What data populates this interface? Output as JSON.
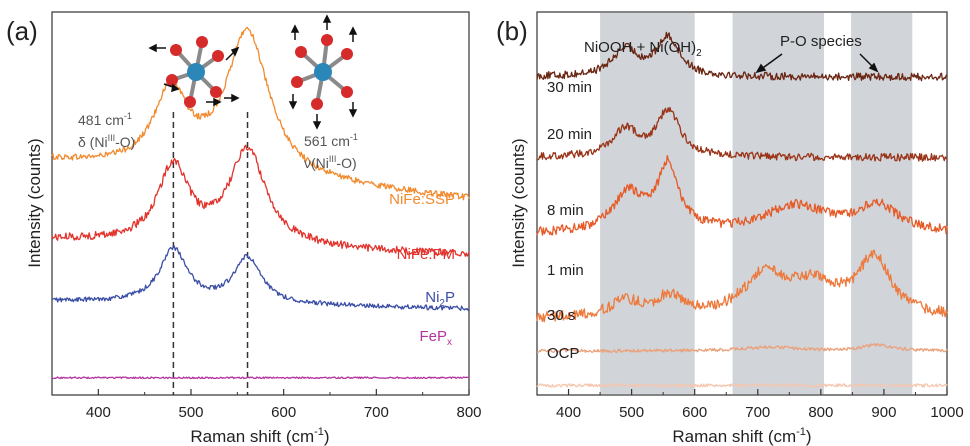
{
  "chart_data": [
    {
      "panel": "(a)",
      "type": "line",
      "xlabel": "Raman shift (cm",
      "xlabel_sup": "-1",
      "xlabel_end": ")",
      "ylabel": "Intensity (counts)",
      "xlim": [
        350,
        800
      ],
      "xticks": [
        "400",
        "500",
        "600",
        "700",
        "800"
      ],
      "reference_lines": [
        481,
        561
      ],
      "annotations": {
        "peak1_wn": "481 cm",
        "peak1_sup": "-1",
        "peak1_mode_a": "δ (Ni",
        "peak1_mode_sup": "III",
        "peak1_mode_b": "-O)",
        "peak2_wn": "561 cm",
        "peak2_sup": "-1",
        "peak2_mode_a": "ν(Ni",
        "peak2_mode_sup": "III",
        "peak2_mode_b": "-O)"
      },
      "series": [
        {
          "name": "NiFe:SSP",
          "color": "#f28a2e",
          "baseline": 0.61,
          "bg_slope": -0.1,
          "peaks": [
            [
              478,
              0.2,
              22
            ],
            [
              561,
              0.38,
              28
            ]
          ],
          "noise": 0.008
        },
        {
          "name": "NiFe:PM",
          "color": "#e2332d",
          "baseline": 0.405,
          "bg_slope": -0.04,
          "peaks": [
            [
              481,
              0.2,
              20
            ],
            [
              561,
              0.25,
              24
            ]
          ],
          "noise": 0.01
        },
        {
          "name": "Ni",
          "label_sub": "2",
          "label_end": "P",
          "color": "#3b4ea5",
          "baseline": 0.245,
          "bg_slope": -0.02,
          "peaks": [
            [
              481,
              0.14,
              18
            ],
            [
              561,
              0.12,
              18
            ]
          ],
          "noise": 0.006
        },
        {
          "name": "FeP",
          "label_sub": "x",
          "color": "#b5339e",
          "baseline": 0.045,
          "bg_slope": 0.0,
          "peaks": [],
          "noise": 0.002
        }
      ]
    },
    {
      "panel": "(b)",
      "type": "line",
      "xlabel": "Raman shift (cm",
      "xlabel_sup": "-1",
      "xlabel_end": ")",
      "ylabel": "Intensity (counts)",
      "xlim": [
        350,
        1000
      ],
      "xticks": [
        "400",
        "500",
        "600",
        "700",
        "800",
        "900",
        "1000"
      ],
      "shaded_regions": [
        [
          450,
          600
        ],
        [
          660,
          805
        ],
        [
          848,
          945
        ]
      ],
      "annotations": {
        "region1_a": "NiOOH + Ni(OH)",
        "region1_sub": "2",
        "region1_b": "",
        "region2": "P-O species"
      },
      "series": [
        {
          "name": "30 min",
          "color": "#6b2614",
          "baseline": 0.83,
          "bg_slope": 0.0,
          "peaks": [
            [
              490,
              0.07,
              25
            ],
            [
              558,
              0.1,
              22
            ]
          ],
          "noise": 0.01
        },
        {
          "name": "20 min",
          "color": "#9a3418",
          "baseline": 0.62,
          "bg_slope": 0.0,
          "peaks": [
            [
              490,
              0.07,
              25
            ],
            [
              558,
              0.12,
              22
            ]
          ],
          "noise": 0.01
        },
        {
          "name": "8 min",
          "color": "#e65a28",
          "baseline": 0.42,
          "bg_slope": 0.0,
          "peaks": [
            [
              495,
              0.1,
              30
            ],
            [
              558,
              0.17,
              20
            ],
            [
              760,
              0.07,
              60
            ],
            [
              890,
              0.07,
              40
            ]
          ],
          "noise": 0.012
        },
        {
          "name": "1 min",
          "color": "#ed7a3c",
          "baseline": 0.2,
          "bg_slope": 0.0,
          "peaks": [
            [
              490,
              0.04,
              30
            ],
            [
              560,
              0.05,
              25
            ],
            [
              710,
              0.1,
              40
            ],
            [
              790,
              0.08,
              50
            ],
            [
              885,
              0.15,
              30
            ]
          ],
          "noise": 0.014
        },
        {
          "name": "30 s",
          "color": "#eba079",
          "baseline": 0.115,
          "bg_slope": 0.0,
          "peaks": [
            [
              720,
              0.01,
              50
            ],
            [
              890,
              0.015,
              30
            ]
          ],
          "noise": 0.004
        },
        {
          "name": "OCP",
          "color": "#f6c5ad",
          "baseline": 0.025,
          "bg_slope": 0.0,
          "peaks": [],
          "noise": 0.004
        }
      ]
    }
  ]
}
